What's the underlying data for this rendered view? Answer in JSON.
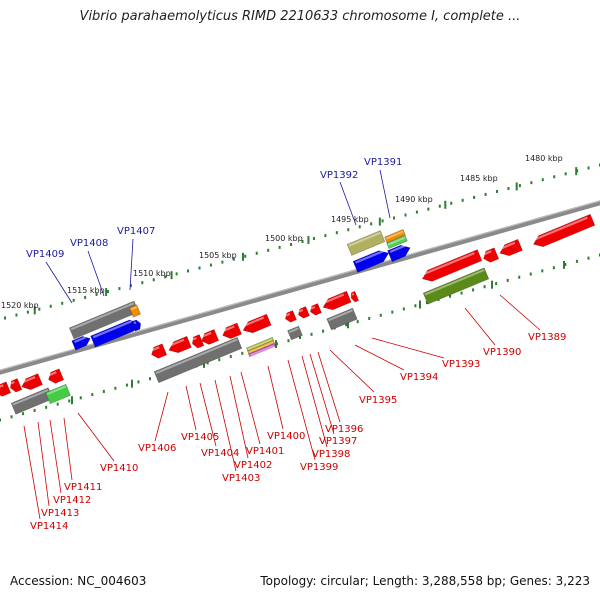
{
  "title": "Vibrio parahaemolyticus RIMD 2210633 chromosome I, complete ...",
  "footer": {
    "accession": "Accession: NC_004603",
    "summary": "Topology: circular; Length: 3,288,558 bp; Genes: 3,223"
  },
  "colors": {
    "backbone": "#808080",
    "tick": "#2e7d32",
    "gene_forward": "#0000ee",
    "gene_reverse": "#ee0000",
    "label_forward": "#1a1aa0",
    "label_reverse": "#cc0000",
    "feature_gray": "#707070",
    "feature_green": "#5a8a1a",
    "feature_orange": "#f08c00",
    "feature_khaki": "#b0b060"
  },
  "scale": {
    "unit": "kbp",
    "ticks": [
      "1480 kbp",
      "1485 kbp",
      "1490 kbp",
      "1495 kbp",
      "1500 kbp",
      "1505 kbp",
      "1510 kbp",
      "1515 kbp",
      "1520 kbp"
    ]
  },
  "labels_upper": [
    "VP1391",
    "VP1392",
    "VP1407",
    "VP1408",
    "VP1409"
  ],
  "labels_lower": [
    "VP1389",
    "VP1390",
    "VP1393",
    "VP1394",
    "VP1395",
    "VP1396",
    "VP1397",
    "VP1398",
    "VP1399",
    "VP1400",
    "VP1401",
    "VP1402",
    "VP1403",
    "VP1404",
    "VP1405",
    "VP1406",
    "VP1410",
    "VP1411",
    "VP1412",
    "VP1413",
    "VP1414"
  ]
}
